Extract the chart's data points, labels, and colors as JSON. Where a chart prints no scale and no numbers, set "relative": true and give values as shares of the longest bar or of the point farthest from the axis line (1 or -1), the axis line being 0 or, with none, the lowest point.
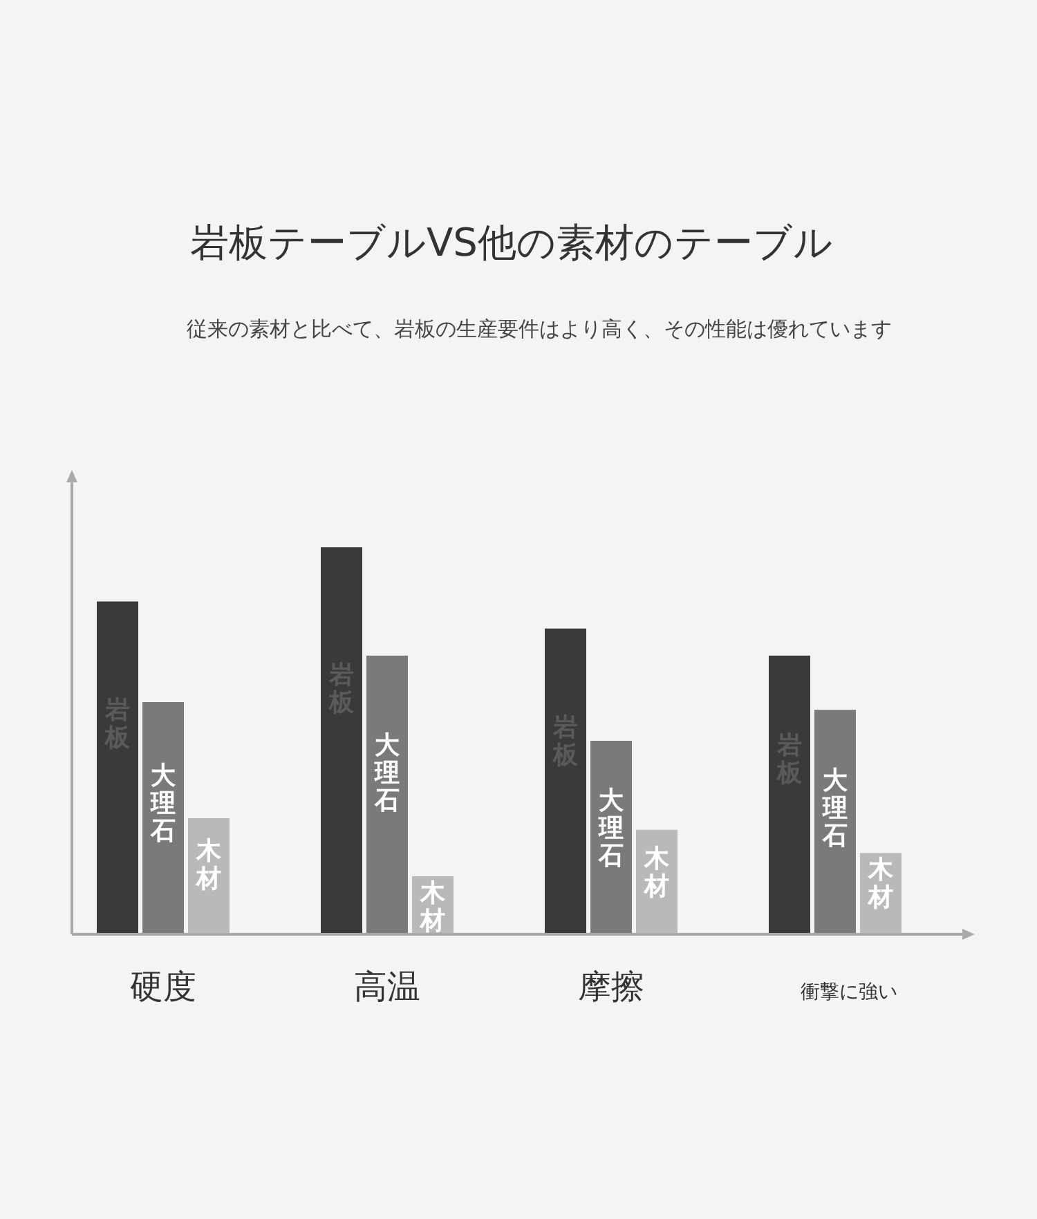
{
  "chart_data": {
    "type": "bar",
    "title": "岩板テーブルVS他の素材のテーブル",
    "subtitle": "従来の素材と比べて、岩板の生産要件はより高く、その性能は優れています",
    "relative": true,
    "legend": false,
    "grid": false,
    "categories": [
      "硬度",
      "高温",
      "摩擦",
      "衝撃に強い"
    ],
    "series": [
      {
        "name": "岩板",
        "color": "#3a3a3a",
        "values": [
          0.86,
          1,
          0.79,
          0.72
        ]
      },
      {
        "name": "大理石",
        "color": "#7a7a7a",
        "values": [
          0.6,
          0.72,
          0.5,
          0.58
        ]
      },
      {
        "name": "木材",
        "color": "#b9b9b9",
        "values": [
          0.3,
          0.15,
          0.27,
          0.21
        ]
      }
    ]
  }
}
